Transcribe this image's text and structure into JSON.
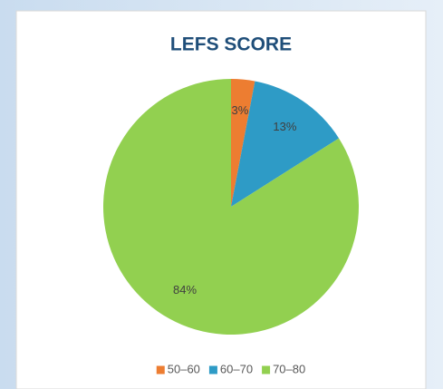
{
  "chart_data": {
    "type": "pie",
    "title": "LEFS SCORE",
    "categories": [
      "50–60",
      "60–70",
      "70–80"
    ],
    "values": [
      3,
      13,
      84
    ],
    "value_labels": [
      "3%",
      "13%",
      "84%"
    ],
    "colors": [
      "#ed7d31",
      "#2e9bc6",
      "#92d050"
    ],
    "legend": "bottom"
  }
}
